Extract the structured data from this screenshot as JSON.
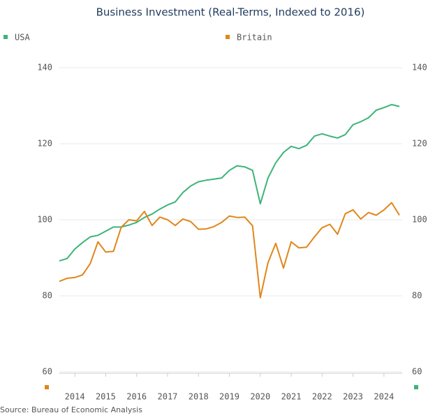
{
  "chart_data": {
    "type": "line",
    "title": "Business Investment (Real-Terms, Indexed to 2016)",
    "source": "Source: Bureau of Economic Analysis",
    "x": [
      2014,
      2014.25,
      2014.5,
      2014.75,
      2015,
      2015.25,
      2015.5,
      2015.75,
      2016,
      2016.25,
      2016.5,
      2016.75,
      2017,
      2017.25,
      2017.5,
      2017.75,
      2018,
      2018.25,
      2018.5,
      2018.75,
      2019,
      2019.25,
      2019.5,
      2019.75,
      2020,
      2020.25,
      2020.5,
      2020.75,
      2021,
      2021.25,
      2021.5,
      2021.75,
      2022,
      2022.25,
      2022.5,
      2022.75,
      2023,
      2023.25,
      2023.5,
      2023.75,
      2024,
      2024.25,
      2024.5,
      2024.75,
      2025
    ],
    "series": [
      {
        "name": "USA",
        "color": "#3db37a",
        "values": [
          89.2,
          89.8,
          92.3,
          94.0,
          95.5,
          95.9,
          97.0,
          98.1,
          98.1,
          98.6,
          99.3,
          100.6,
          101.5,
          102.8,
          103.9,
          104.7,
          107.2,
          108.9,
          110.0,
          110.4,
          110.7,
          111.0,
          113.0,
          114.2,
          113.9,
          113.0,
          104.2,
          111.0,
          115.0,
          117.7,
          119.3,
          118.7,
          119.6,
          122.0,
          122.6,
          122.0,
          121.5,
          122.4,
          125.0,
          125.8,
          126.8,
          128.8,
          129.5,
          130.3,
          129.8
        ]
      },
      {
        "name": "Britain",
        "color": "#e0861a",
        "values": [
          83.8,
          84.6,
          84.8,
          85.5,
          88.5,
          94.2,
          91.5,
          91.7,
          98.0,
          100.0,
          99.7,
          102.2,
          98.5,
          100.7,
          100.0,
          98.5,
          100.2,
          99.5,
          97.5,
          97.6,
          98.2,
          99.3,
          101.0,
          100.6,
          100.7,
          98.4,
          79.5,
          88.7,
          93.8,
          87.3,
          94.2,
          92.6,
          92.8,
          95.5,
          97.9,
          98.8,
          96.2,
          101.6,
          102.6,
          100.2,
          101.9,
          101.2,
          102.6,
          104.5,
          101.2
        ]
      }
    ],
    "xlim": [
      2014,
      2025
    ],
    "xticks": [
      {
        "value": 2014.5,
        "label": "2014"
      },
      {
        "value": 2015.5,
        "label": "2015"
      },
      {
        "value": 2016.5,
        "label": "2016"
      },
      {
        "value": 2017.5,
        "label": "2017"
      },
      {
        "value": 2018.5,
        "label": "2018"
      },
      {
        "value": 2019.5,
        "label": "2019"
      },
      {
        "value": 2020.5,
        "label": "2020"
      },
      {
        "value": 2021.5,
        "label": "2021"
      },
      {
        "value": 2022.5,
        "label": "2022"
      },
      {
        "value": 2023.5,
        "label": "2023"
      },
      {
        "value": 2024.5,
        "label": "2024"
      }
    ],
    "ylim": [
      60,
      140
    ],
    "yticks": [
      60,
      80,
      100,
      120,
      140
    ],
    "y2lim": [
      60,
      140
    ],
    "y2ticks": [
      60,
      80,
      100,
      120,
      140
    ],
    "grid": true
  }
}
